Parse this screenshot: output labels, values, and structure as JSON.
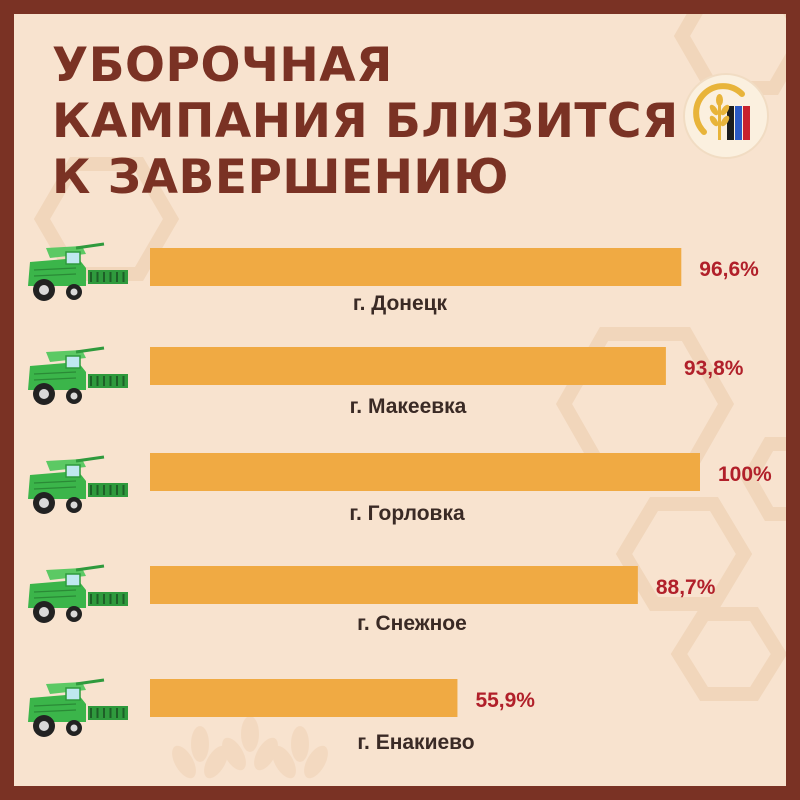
{
  "title_lines": [
    "УБОРОЧНАЯ",
    "КАМПАНИЯ БЛИЗИТСЯ",
    "К ЗАВЕРШЕНИЮ"
  ],
  "colors": {
    "border": "#7a3224",
    "background": "#f8e3cf",
    "bar": "#f0aa43",
    "value_text": "#b1202a",
    "label_text": "#3a2a25",
    "combine": "#3bb54a"
  },
  "icons": {
    "row_icon": "combine-harvester-icon",
    "logo": "wheat-emblem-logo"
  },
  "chart_data": {
    "type": "bar",
    "orientation": "horizontal",
    "categories": [
      "г. Донецк",
      "г. Макеевка",
      "г. Горловка",
      "г. Снежное",
      "г. Енакиево"
    ],
    "values": [
      96.6,
      93.8,
      100,
      88.7,
      55.9
    ],
    "value_labels": [
      "96,6%",
      "93,8%",
      "100%",
      "88,7%",
      "55,9%"
    ],
    "xlim": [
      0,
      100
    ],
    "unit": "%",
    "grid": false,
    "legend": "none"
  }
}
